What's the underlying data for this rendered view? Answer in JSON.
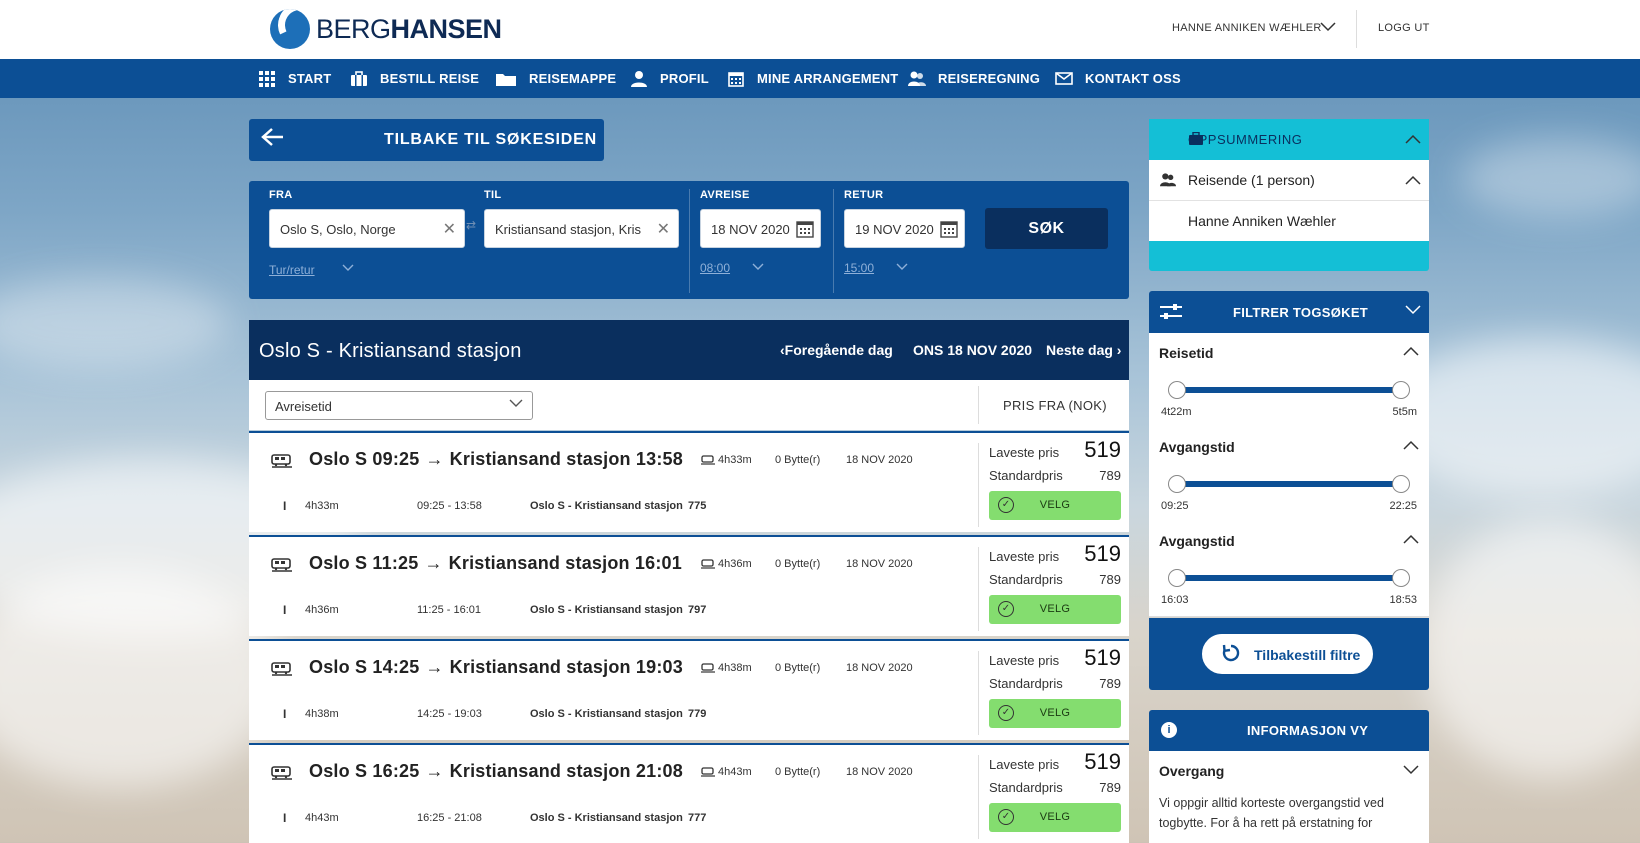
{
  "brand": {
    "name_light": "BERG",
    "name_bold": "HANSEN"
  },
  "header": {
    "user_name": "HANNE ANNIKEN WÆHLER",
    "logout": "LOGG UT"
  },
  "nav": [
    {
      "label": "START",
      "icon": "grid-icon"
    },
    {
      "label": "BESTILL REISE",
      "icon": "suitcase-icon"
    },
    {
      "label": "REISEMAPPE",
      "icon": "folder-icon"
    },
    {
      "label": "PROFIL",
      "icon": "person-icon"
    },
    {
      "label": "MINE ARRANGEMENT",
      "icon": "calendar-icon"
    },
    {
      "label": "REISEREGNING",
      "icon": "users-icon"
    },
    {
      "label": "KONTAKT OSS",
      "icon": "envelope-icon"
    }
  ],
  "back_button": {
    "label": "TILBAKE TIL SØKESIDEN"
  },
  "search": {
    "from_label": "FRA",
    "from_value": "Oslo S, Oslo, Norge",
    "to_label": "TIL",
    "to_value": "Kristiansand stasjon, Kris",
    "depart_label": "AVREISE",
    "depart_value": "18 NOV 2020",
    "depart_time": "08:00",
    "return_label": "RETUR",
    "return_value": "19 NOV 2020",
    "return_time": "15:00",
    "trip_type": "Tur/retur",
    "search_button": "SØK"
  },
  "results": {
    "route_title": "Oslo S - Kristiansand stasjon",
    "prev_day": "Foregående dag",
    "current_day": "ONS 18 NOV 2020",
    "next_day": "Neste dag",
    "sort_value": "Avreisetid",
    "price_header": "PRIS FRA (NOK)",
    "lowest_label": "Laveste pris",
    "standard_label": "Standardpris",
    "select_label": "VELG",
    "trips": [
      {
        "from": "Oslo S",
        "dep": "09:25",
        "to": "Kristiansand stasjon",
        "arr": "13:58",
        "duration": "4h33m",
        "changes": "0 Bytte(r)",
        "date": "18 NOV 2020",
        "time_range": "09:25 - 13:58",
        "leg": "Oslo S - Kristiansand stasjon",
        "train_no": "775",
        "lowest": "519",
        "standard": "789"
      },
      {
        "from": "Oslo S",
        "dep": "11:25",
        "to": "Kristiansand stasjon",
        "arr": "16:01",
        "duration": "4h36m",
        "changes": "0 Bytte(r)",
        "date": "18 NOV 2020",
        "time_range": "11:25 - 16:01",
        "leg": "Oslo S - Kristiansand stasjon",
        "train_no": "797",
        "lowest": "519",
        "standard": "789"
      },
      {
        "from": "Oslo S",
        "dep": "14:25",
        "to": "Kristiansand stasjon",
        "arr": "19:03",
        "duration": "4h38m",
        "changes": "0 Bytte(r)",
        "date": "18 NOV 2020",
        "time_range": "14:25 - 19:03",
        "leg": "Oslo S - Kristiansand stasjon",
        "train_no": "779",
        "lowest": "519",
        "standard": "789"
      },
      {
        "from": "Oslo S",
        "dep": "16:25",
        "to": "Kristiansand stasjon",
        "arr": "21:08",
        "duration": "4h43m",
        "changes": "0 Bytte(r)",
        "date": "18 NOV 2020",
        "time_range": "16:25 - 21:08",
        "leg": "Oslo S - Kristiansand stasjon",
        "train_no": "777",
        "lowest": "519",
        "standard": "789"
      }
    ]
  },
  "summary": {
    "title": "OPPSUMMERING",
    "travellers_label": "Reisende (1 person)",
    "traveller_name": "Hanne Anniken Wæhler"
  },
  "filter": {
    "title": "FILTRER TOGSØKET",
    "sections": [
      {
        "title": "Reisetid",
        "min": "4t22m",
        "max": "5t5m"
      },
      {
        "title": "Avgangstid",
        "min": "09:25",
        "max": "22:25"
      },
      {
        "title": "Avgangstid",
        "min": "16:03",
        "max": "18:53"
      }
    ],
    "reset_label": "Tilbakestill filtre"
  },
  "info": {
    "title": "INFORMASJON VY",
    "section_title": "Overgang",
    "text": "Vi oppgir alltid korteste overgangstid ved togbytte. For å ha rett på erstatning for"
  },
  "colors": {
    "primary": "#0c4f95",
    "dark": "#0a2f5e",
    "accent": "#14bfd6",
    "select": "#84dd6f"
  }
}
